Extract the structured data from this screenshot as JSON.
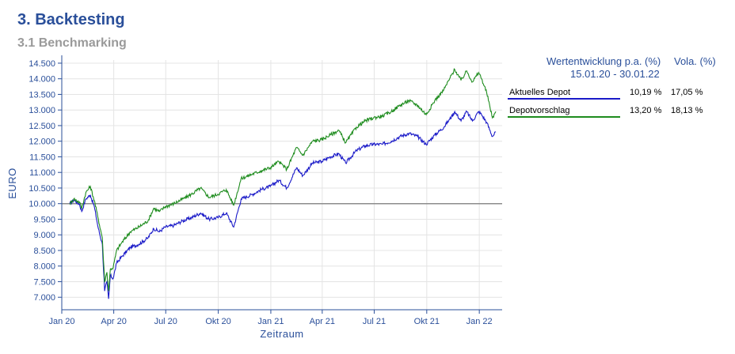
{
  "header": {
    "title": "3. Backtesting",
    "subtitle": "3.1 Benchmarking"
  },
  "legend": {
    "col1_header": "Wertentwicklung p.a. (%)",
    "col2_header": "Vola. (%)",
    "period": "15.01.20 - 30.01.22",
    "rows": [
      {
        "name": "Aktuelles Depot",
        "return": "10,19 %",
        "vola": "17,05 %",
        "color": "#1a1ac8"
      },
      {
        "name": "Depotvorschlag",
        "return": "13,20 %",
        "vola": "18,13 %",
        "color": "#1e8c1e"
      }
    ]
  },
  "chart_data": {
    "type": "line",
    "xlabel": "Zeitraum",
    "ylabel": "EURO",
    "x_ticks": [
      "Jan 20",
      "Apr 20",
      "Jul 20",
      "Okt 20",
      "Jan 21",
      "Apr 21",
      "Jul 21",
      "Okt 21",
      "Jan 22"
    ],
    "y_ticks": [
      "7.000",
      "7.500",
      "8.000",
      "8.500",
      "9.000",
      "9.500",
      "10.000",
      "10.500",
      "11.000",
      "11.500",
      "12.000",
      "12.500",
      "13.000",
      "13.500",
      "14.000",
      "14.500"
    ],
    "ylim": [
      6600,
      14600
    ],
    "xlim": [
      "2020-01-01",
      "2022-02-10"
    ],
    "reference_line": 10000,
    "grid": true,
    "series": [
      {
        "name": "Aktuelles Depot",
        "color": "#1a1ac8",
        "points": [
          [
            "2020-01-15",
            10000
          ],
          [
            "2020-01-22",
            10120
          ],
          [
            "2020-02-01",
            9980
          ],
          [
            "2020-02-05",
            9750
          ],
          [
            "2020-02-12",
            10150
          ],
          [
            "2020-02-20",
            10280
          ],
          [
            "2020-02-27",
            9900
          ],
          [
            "2020-03-05",
            9200
          ],
          [
            "2020-03-12",
            8700
          ],
          [
            "2020-03-16",
            7200
          ],
          [
            "2020-03-20",
            7500
          ],
          [
            "2020-03-23",
            6950
          ],
          [
            "2020-03-26",
            7700
          ],
          [
            "2020-03-31",
            7600
          ],
          [
            "2020-04-06",
            8100
          ],
          [
            "2020-04-15",
            8300
          ],
          [
            "2020-04-30",
            8600
          ],
          [
            "2020-05-15",
            8700
          ],
          [
            "2020-05-31",
            8900
          ],
          [
            "2020-06-10",
            9200
          ],
          [
            "2020-06-20",
            9100
          ],
          [
            "2020-06-30",
            9250
          ],
          [
            "2020-07-15",
            9300
          ],
          [
            "2020-07-31",
            9450
          ],
          [
            "2020-08-15",
            9550
          ],
          [
            "2020-08-31",
            9700
          ],
          [
            "2020-09-15",
            9500
          ],
          [
            "2020-09-30",
            9550
          ],
          [
            "2020-10-15",
            9700
          ],
          [
            "2020-10-28",
            9250
          ],
          [
            "2020-11-10",
            10150
          ],
          [
            "2020-11-30",
            10300
          ],
          [
            "2020-12-15",
            10450
          ],
          [
            "2020-12-31",
            10550
          ],
          [
            "2021-01-15",
            10750
          ],
          [
            "2021-01-29",
            10500
          ],
          [
            "2021-02-15",
            11150
          ],
          [
            "2021-02-26",
            10900
          ],
          [
            "2021-03-15",
            11300
          ],
          [
            "2021-03-31",
            11350
          ],
          [
            "2021-04-15",
            11500
          ],
          [
            "2021-04-30",
            11600
          ],
          [
            "2021-05-12",
            11300
          ],
          [
            "2021-05-31",
            11700
          ],
          [
            "2021-06-15",
            11850
          ],
          [
            "2021-06-30",
            11900
          ],
          [
            "2021-07-15",
            11900
          ],
          [
            "2021-07-31",
            12000
          ],
          [
            "2021-08-15",
            12150
          ],
          [
            "2021-08-31",
            12250
          ],
          [
            "2021-09-15",
            12150
          ],
          [
            "2021-09-30",
            11900
          ],
          [
            "2021-10-15",
            12200
          ],
          [
            "2021-10-31",
            12450
          ],
          [
            "2021-11-10",
            12700
          ],
          [
            "2021-11-19",
            12950
          ],
          [
            "2021-11-30",
            12650
          ],
          [
            "2021-12-10",
            12950
          ],
          [
            "2021-12-20",
            12650
          ],
          [
            "2021-12-31",
            12950
          ],
          [
            "2022-01-05",
            12850
          ],
          [
            "2022-01-14",
            12600
          ],
          [
            "2022-01-24",
            12150
          ],
          [
            "2022-01-30",
            12300
          ]
        ]
      },
      {
        "name": "Depotvorschlag",
        "color": "#1e8c1e",
        "points": [
          [
            "2020-01-15",
            10000
          ],
          [
            "2020-01-22",
            10150
          ],
          [
            "2020-02-01",
            10050
          ],
          [
            "2020-02-05",
            9850
          ],
          [
            "2020-02-12",
            10350
          ],
          [
            "2020-02-20",
            10550
          ],
          [
            "2020-02-27",
            10100
          ],
          [
            "2020-03-05",
            9500
          ],
          [
            "2020-03-12",
            8900
          ],
          [
            "2020-03-16",
            7500
          ],
          [
            "2020-03-20",
            7800
          ],
          [
            "2020-03-23",
            7200
          ],
          [
            "2020-03-26",
            7900
          ],
          [
            "2020-03-31",
            7950
          ],
          [
            "2020-04-06",
            8500
          ],
          [
            "2020-04-15",
            8750
          ],
          [
            "2020-04-30",
            9100
          ],
          [
            "2020-05-15",
            9250
          ],
          [
            "2020-05-31",
            9450
          ],
          [
            "2020-06-10",
            9850
          ],
          [
            "2020-06-20",
            9750
          ],
          [
            "2020-06-30",
            9900
          ],
          [
            "2020-07-15",
            10000
          ],
          [
            "2020-07-31",
            10150
          ],
          [
            "2020-08-15",
            10300
          ],
          [
            "2020-08-31",
            10500
          ],
          [
            "2020-09-15",
            10200
          ],
          [
            "2020-09-30",
            10300
          ],
          [
            "2020-10-15",
            10450
          ],
          [
            "2020-10-28",
            9950
          ],
          [
            "2020-11-10",
            10800
          ],
          [
            "2020-11-30",
            10950
          ],
          [
            "2020-12-15",
            11050
          ],
          [
            "2020-12-31",
            11150
          ],
          [
            "2021-01-15",
            11350
          ],
          [
            "2021-01-29",
            11100
          ],
          [
            "2021-02-15",
            11800
          ],
          [
            "2021-02-26",
            11550
          ],
          [
            "2021-03-15",
            12000
          ],
          [
            "2021-03-31",
            12050
          ],
          [
            "2021-04-15",
            12200
          ],
          [
            "2021-04-30",
            12350
          ],
          [
            "2021-05-12",
            11950
          ],
          [
            "2021-05-31",
            12450
          ],
          [
            "2021-06-15",
            12650
          ],
          [
            "2021-06-30",
            12750
          ],
          [
            "2021-07-15",
            12800
          ],
          [
            "2021-07-31",
            12950
          ],
          [
            "2021-08-15",
            13150
          ],
          [
            "2021-08-31",
            13300
          ],
          [
            "2021-09-15",
            13150
          ],
          [
            "2021-09-30",
            12850
          ],
          [
            "2021-10-15",
            13300
          ],
          [
            "2021-10-31",
            13650
          ],
          [
            "2021-11-10",
            14000
          ],
          [
            "2021-11-19",
            14300
          ],
          [
            "2021-11-30",
            13950
          ],
          [
            "2021-12-10",
            14250
          ],
          [
            "2021-12-20",
            13900
          ],
          [
            "2021-12-31",
            14200
          ],
          [
            "2022-01-05",
            14000
          ],
          [
            "2022-01-14",
            13550
          ],
          [
            "2022-01-24",
            12750
          ],
          [
            "2022-01-30",
            12950
          ]
        ]
      }
    ]
  }
}
